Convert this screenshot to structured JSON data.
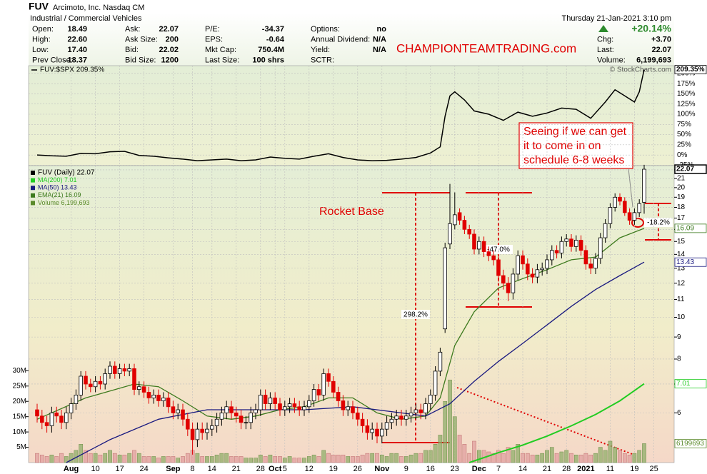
{
  "header": {
    "symbol": "FUV",
    "company": "Arcimoto, Inc. Nasdaq CM",
    "industry": "Industrial / Commercial Vehicles",
    "date": "Thursday  21-Jan-2021  3:10 pm",
    "columns": [
      [
        [
          "Open:",
          "18.49"
        ],
        [
          "High:",
          "22.60"
        ],
        [
          "Low:",
          "17.40"
        ],
        [
          "Prev Close:",
          "18.37"
        ]
      ],
      [
        [
          "Ask:",
          "22.07"
        ],
        [
          "Ask Size:",
          "200"
        ],
        [
          "Bid:",
          "22.02"
        ],
        [
          "Bid Size:",
          "1200"
        ]
      ],
      [
        [
          "P/E:",
          "-34.37"
        ],
        [
          "EPS:",
          "-0.64"
        ],
        [
          "Mkt Cap:",
          "750.4M"
        ],
        [
          "Last Size:",
          "100 shrs"
        ]
      ],
      [
        [
          "Options:",
          "no"
        ],
        [
          "Annual Dividend:",
          "N/A"
        ],
        [
          "Yield:",
          "N/A"
        ],
        [
          "SCTR:"
        ]
      ]
    ],
    "change_pct": "+20.14%",
    "summary": [
      [
        "Chg:",
        "+3.70"
      ],
      [
        "Last:",
        "22.07"
      ],
      [
        "Volume:",
        "6,199,693"
      ]
    ],
    "watermark": "CHAMPIONTEAMTRADING.com",
    "credit": "© StockCharts.com"
  },
  "chart_data": {
    "type": "candlestick",
    "categories": [
      null,
      null,
      null,
      null,
      null,
      null,
      null,
      "Aug",
      null,
      null,
      null,
      null,
      "10",
      null,
      null,
      null,
      null,
      "17",
      null,
      null,
      null,
      null,
      "24",
      null,
      null,
      null,
      null,
      null,
      "Sep",
      null,
      null,
      null,
      "8",
      null,
      null,
      null,
      "14",
      null,
      null,
      null,
      null,
      "21",
      null,
      null,
      null,
      null,
      "28",
      null,
      null,
      "Oct",
      null,
      "5",
      null,
      null,
      null,
      null,
      "12",
      null,
      null,
      null,
      null,
      "19",
      null,
      null,
      null,
      null,
      "26",
      null,
      null,
      null,
      null,
      "Nov",
      null,
      null,
      null,
      null,
      "9",
      null,
      null,
      null,
      null,
      "16",
      null,
      null,
      null,
      null,
      "23",
      null,
      null,
      null,
      null,
      "Dec",
      null,
      null,
      null,
      "7",
      null,
      null,
      null,
      null,
      "14",
      null,
      null,
      null,
      null,
      "21",
      null,
      null,
      null,
      "28",
      null,
      null,
      null,
      "2021",
      null,
      null,
      null,
      null,
      "11",
      null,
      null,
      null,
      null,
      "19",
      null,
      null,
      null,
      "25"
    ],
    "open": [
      6.1,
      5.9,
      5.7,
      5.6,
      6.0,
      5.9,
      5.7,
      6.0,
      6.3,
      6.6,
      7.3,
      7.0,
      6.9,
      7.1,
      7.0,
      7.4,
      7.7,
      7.4,
      7.6,
      7.5,
      7.6,
      6.8,
      6.9,
      6.7,
      6.5,
      6.6,
      6.4,
      6.5,
      6.2,
      6.0,
      6.1,
      5.8,
      5.5,
      5.2,
      5.5,
      5.4,
      5.5,
      5.6,
      5.8,
      6.0,
      6.2,
      6.0,
      5.9,
      5.7,
      5.7,
      6.0,
      6.1,
      6.6,
      6.3,
      6.5,
      6.3,
      6.1,
      6.2,
      6.3,
      6.2,
      6.1,
      6.2,
      6.4,
      6.8,
      6.6,
      7.4,
      7.1,
      6.7,
      6.4,
      6.1,
      6.2,
      6.0,
      5.8,
      5.6,
      5.4,
      5.5,
      5.3,
      5.5,
      5.7,
      5.8,
      5.9,
      5.8,
      5.9,
      6.0,
      6.1,
      6.0,
      6.3,
      6.6,
      7.5,
      9.4,
      14.8,
      16.4,
      17.5,
      16.8,
      16.0,
      15.6,
      14.4,
      15.0,
      14.2,
      13.9,
      13.6,
      12.5,
      12.0,
      11.4,
      12.6,
      13.9,
      13.3,
      12.6,
      12.4,
      12.9,
      13.0,
      13.6,
      14.3,
      14.1,
      15.0,
      15.2,
      14.6,
      15.1,
      14.3,
      13.3,
      13.0,
      13.7,
      15.3,
      16.5,
      18.0,
      19.0,
      18.6,
      17.5,
      16.8,
      17.5,
      18.49,
      null,
      null
    ],
    "high": [
      6.3,
      6.1,
      5.9,
      6.2,
      6.2,
      6.1,
      6.2,
      6.5,
      6.8,
      7.5,
      7.5,
      7.2,
      7.3,
      7.3,
      7.6,
      7.9,
      7.9,
      7.8,
      7.8,
      7.8,
      7.8,
      7.1,
      7.1,
      6.9,
      6.8,
      6.8,
      6.7,
      6.7,
      6.4,
      6.3,
      6.3,
      6.0,
      5.7,
      5.7,
      5.7,
      5.7,
      5.8,
      6.0,
      6.2,
      6.4,
      6.4,
      6.2,
      6.1,
      5.9,
      6.2,
      6.3,
      6.8,
      6.8,
      6.7,
      6.7,
      6.5,
      6.4,
      6.5,
      6.5,
      6.4,
      6.4,
      6.6,
      7.0,
      7.0,
      7.6,
      7.6,
      7.3,
      6.9,
      6.6,
      6.4,
      6.4,
      6.2,
      6.0,
      5.8,
      5.7,
      5.7,
      5.7,
      5.9,
      6.0,
      6.1,
      6.1,
      6.1,
      6.2,
      6.3,
      6.3,
      6.5,
      6.8,
      7.7,
      8.5,
      14.9,
      20.4,
      19.5,
      17.9,
      17.2,
      16.4,
      16.0,
      15.4,
      15.4,
      14.6,
      14.3,
      14.0,
      12.9,
      12.4,
      13.0,
      14.3,
      14.3,
      13.7,
      13.0,
      13.3,
      13.4,
      14.0,
      14.7,
      14.7,
      15.4,
      15.6,
      15.6,
      15.5,
      15.5,
      14.7,
      13.7,
      14.1,
      15.7,
      16.9,
      18.4,
      19.4,
      19.4,
      19.0,
      17.9,
      17.9,
      18.8,
      22.6,
      null,
      null
    ],
    "low": [
      5.7,
      5.5,
      5.4,
      5.4,
      5.7,
      5.5,
      5.5,
      5.8,
      6.1,
      6.4,
      6.8,
      6.7,
      6.7,
      6.8,
      6.8,
      7.2,
      7.2,
      7.2,
      7.3,
      7.3,
      6.6,
      6.6,
      6.5,
      6.3,
      6.3,
      6.2,
      6.2,
      6.0,
      5.8,
      5.8,
      5.6,
      5.3,
      4.8,
      5.0,
      5.2,
      5.2,
      5.3,
      5.4,
      5.6,
      5.8,
      5.8,
      5.7,
      5.5,
      5.5,
      5.5,
      5.8,
      5.9,
      6.1,
      6.1,
      6.1,
      5.9,
      5.9,
      6.0,
      6.0,
      5.9,
      5.9,
      6.0,
      6.2,
      6.4,
      6.4,
      6.9,
      6.5,
      6.2,
      5.9,
      5.9,
      5.8,
      5.6,
      5.4,
      5.2,
      5.2,
      5.1,
      5.1,
      5.3,
      5.5,
      5.6,
      5.6,
      5.6,
      5.7,
      5.8,
      5.8,
      5.8,
      6.1,
      6.4,
      7.3,
      9.2,
      14.4,
      16.0,
      16.4,
      15.6,
      15.2,
      14.0,
      14.0,
      13.8,
      13.5,
      13.2,
      12.1,
      11.6,
      10.9,
      11.0,
      12.2,
      12.9,
      12.2,
      12.0,
      12.0,
      12.5,
      12.6,
      13.2,
      13.7,
      13.7,
      14.6,
      14.2,
      14.2,
      13.9,
      12.9,
      12.6,
      12.6,
      13.3,
      14.9,
      16.1,
      17.6,
      18.2,
      17.2,
      16.4,
      16.4,
      17.1,
      17.4,
      null,
      null
    ],
    "close": [
      5.9,
      5.7,
      5.6,
      6.0,
      5.9,
      5.7,
      6.0,
      6.3,
      6.6,
      7.3,
      7.0,
      6.9,
      7.1,
      7.0,
      7.4,
      7.7,
      7.4,
      7.6,
      7.5,
      7.6,
      6.8,
      6.9,
      6.7,
      6.5,
      6.6,
      6.4,
      6.5,
      6.2,
      6.0,
      6.1,
      5.8,
      5.5,
      5.2,
      5.5,
      5.4,
      5.5,
      5.6,
      5.8,
      6.0,
      6.2,
      6.0,
      5.9,
      5.7,
      5.7,
      6.0,
      6.1,
      6.6,
      6.3,
      6.5,
      6.3,
      6.1,
      6.2,
      6.3,
      6.2,
      6.1,
      6.2,
      6.4,
      6.8,
      6.6,
      7.4,
      7.1,
      6.7,
      6.4,
      6.1,
      6.2,
      6.0,
      5.8,
      5.6,
      5.4,
      5.5,
      5.3,
      5.5,
      5.7,
      5.8,
      5.9,
      5.8,
      5.9,
      6.0,
      6.1,
      6.0,
      6.3,
      6.6,
      7.5,
      8.3,
      14.5,
      16.5,
      17.3,
      16.8,
      16.0,
      15.6,
      14.4,
      15.0,
      14.2,
      13.9,
      13.6,
      12.5,
      12.0,
      11.4,
      12.6,
      13.9,
      13.3,
      12.6,
      12.4,
      12.9,
      13.0,
      13.6,
      14.3,
      14.1,
      15.0,
      15.2,
      14.6,
      15.1,
      14.3,
      13.3,
      13.0,
      13.7,
      15.3,
      16.5,
      18.0,
      19.0,
      18.6,
      17.5,
      16.8,
      17.5,
      18.37,
      22.07,
      null,
      null
    ],
    "volume": [
      3,
      2.5,
      2,
      2.5,
      2,
      3,
      2,
      3,
      4,
      6,
      4,
      3,
      3,
      2.5,
      3,
      4,
      3,
      2.5,
      2.5,
      3,
      4,
      3,
      2,
      2,
      2,
      1.5,
      2,
      2,
      2,
      1.5,
      2,
      3,
      4,
      3,
      2,
      2,
      2,
      2.5,
      3,
      3,
      2,
      2,
      2,
      1.5,
      1.5,
      1.5,
      2.5,
      2,
      2.5,
      2,
      2,
      1.5,
      2,
      1.5,
      1.5,
      1.5,
      2,
      2.5,
      2,
      4,
      3,
      2.5,
      2.5,
      2.5,
      2,
      2,
      2,
      2.5,
      3,
      3,
      3,
      2.5,
      2,
      3,
      3,
      2,
      2,
      2.5,
      3,
      3,
      4,
      4,
      6,
      9,
      20,
      27,
      15,
      9,
      6,
      3,
      7,
      4,
      4,
      3.5,
      3,
      4,
      3,
      5,
      4,
      6,
      3,
      3,
      2.5,
      2.5,
      3,
      4,
      5,
      3,
      3.5,
      4,
      3,
      2.5,
      2.5,
      3,
      2.5,
      3,
      5,
      4,
      7,
      5,
      4,
      3,
      2.5,
      3,
      4,
      6.199693,
      null,
      null
    ],
    "ylim": [
      4.6,
      22.5
    ],
    "log_scale": true,
    "yticks": [
      6,
      7,
      8,
      9,
      10,
      11,
      12,
      13,
      14,
      15,
      16,
      17,
      18,
      19,
      20,
      21,
      22
    ],
    "volume_lim": [
      0,
      97
    ],
    "volume_ticks": [
      {
        "value": 5,
        "label": "5M"
      },
      {
        "value": 10,
        "label": "10M"
      },
      {
        "value": 15,
        "label": "15M"
      },
      {
        "value": 20,
        "label": "20M"
      },
      {
        "value": 25,
        "label": "25M"
      },
      {
        "value": 30,
        "label": "30M"
      }
    ],
    "grid": true,
    "up_color": "#000000",
    "down_color": "#e00000",
    "overlays": [
      {
        "name": "EMA(21) 16.09",
        "color": "#3d7a1e",
        "x": [
          0,
          10,
          20,
          25,
          30,
          35,
          40,
          45,
          50,
          55,
          60,
          65,
          70,
          75,
          80,
          83,
          86,
          90,
          95,
          100,
          105,
          110,
          115,
          120,
          125
        ],
        "values": [
          5.8,
          6.5,
          7.0,
          6.9,
          6.4,
          5.9,
          5.8,
          5.9,
          6.1,
          6.2,
          6.5,
          6.5,
          6.0,
          5.8,
          5.9,
          6.5,
          8.6,
          10.3,
          11.7,
          12.3,
          12.9,
          13.6,
          13.8,
          15.3,
          16.09
        ]
      },
      {
        "name": "MA(50) 13.43",
        "color": "#1a1a80",
        "x": [
          6,
          15,
          25,
          35,
          45,
          55,
          65,
          75,
          80,
          85,
          90,
          95,
          100,
          105,
          110,
          115,
          120,
          125
        ],
        "values": [
          4.6,
          5.2,
          5.8,
          6.1,
          6.1,
          6.1,
          6.2,
          6.0,
          5.9,
          6.3,
          7.1,
          7.9,
          8.7,
          9.6,
          10.6,
          11.6,
          12.5,
          13.43
        ]
      },
      {
        "name": "MA(200) 7.01",
        "color": "#22cc22",
        "x": [
          89,
          95,
          100,
          105,
          110,
          115,
          120,
          125
        ],
        "values": [
          4.6,
          4.85,
          5.05,
          5.3,
          5.6,
          5.95,
          6.4,
          7.01
        ]
      }
    ],
    "legend": [
      {
        "text": "FUV (Daily) 22.07",
        "color": "#000000"
      },
      {
        "text": "MA(200) 7.01",
        "color": "#22cc22"
      },
      {
        "text": "MA(50) 13.43",
        "color": "#1a1a80"
      },
      {
        "text": "EMA(21) 16.09",
        "color": "#3d7a1e"
      },
      {
        "text": "Volume 6,199,693",
        "color": "#5a8a2a"
      }
    ],
    "axis_markers": [
      {
        "label": "22.07",
        "value": 22.07,
        "scale": "price",
        "color": "#000000"
      },
      {
        "label": "16.09",
        "value": 16.09,
        "scale": "price",
        "color": "#3d7a1e"
      },
      {
        "label": "13.43",
        "value": 13.43,
        "scale": "price",
        "color": "#1a1a80"
      },
      {
        "label": "7.01",
        "value": 7.01,
        "scale": "price",
        "color": "#22cc22"
      },
      {
        "label": "6199693",
        "value": 6.199693,
        "scale": "volume",
        "color": "#5a8a2a"
      },
      {
        "label": "209.35%",
        "value": 209.35,
        "scale": "rs",
        "color": "#000000"
      }
    ],
    "relative_strength": {
      "name": "FUV:$SPX 209.35%",
      "color": "#000000",
      "x": [
        0,
        3,
        6,
        9,
        12,
        15,
        18,
        21,
        24,
        27,
        30,
        33,
        36,
        39,
        42,
        45,
        48,
        51,
        54,
        57,
        60,
        63,
        66,
        69,
        72,
        75,
        78,
        81,
        83,
        84,
        85,
        86,
        88,
        90,
        93,
        96,
        99,
        102,
        105,
        108,
        111,
        114,
        117,
        119,
        121,
        123,
        124,
        125
      ],
      "values": [
        0,
        -2,
        -3,
        4,
        3,
        8,
        9,
        -1,
        -3,
        -7,
        -10,
        -14,
        -12,
        -10,
        -14,
        -12,
        -5,
        -8,
        -10,
        -3,
        3,
        -6,
        -12,
        -14,
        -13,
        -10,
        -6,
        5,
        20,
        95,
        145,
        155,
        135,
        108,
        100,
        85,
        105,
        95,
        103,
        115,
        112,
        90,
        130,
        160,
        145,
        130,
        155,
        209.35
      ],
      "ylim": [
        -26,
        219
      ],
      "yticks": [
        {
          "value": -25,
          "label": "-25%"
        },
        {
          "value": 0,
          "label": "0%"
        },
        {
          "value": 25,
          "label": "25%"
        },
        {
          "value": 50,
          "label": "50%"
        },
        {
          "value": 75,
          "label": "75%"
        },
        {
          "value": 100,
          "label": "100%"
        },
        {
          "value": 125,
          "label": "125%"
        },
        {
          "value": 150,
          "label": "150%"
        },
        {
          "value": 175,
          "label": "175%"
        },
        {
          "value": 200,
          "label": "200%"
        }
      ]
    },
    "annotations": {
      "rocket_base": "Rocket Base",
      "gain": "298.2%",
      "drawdown": "-47.0%",
      "pullback": "-18.2%",
      "note": [
        "Seeing if we can get",
        "it to come in on",
        "schedule 6-8 weeks"
      ]
    }
  }
}
